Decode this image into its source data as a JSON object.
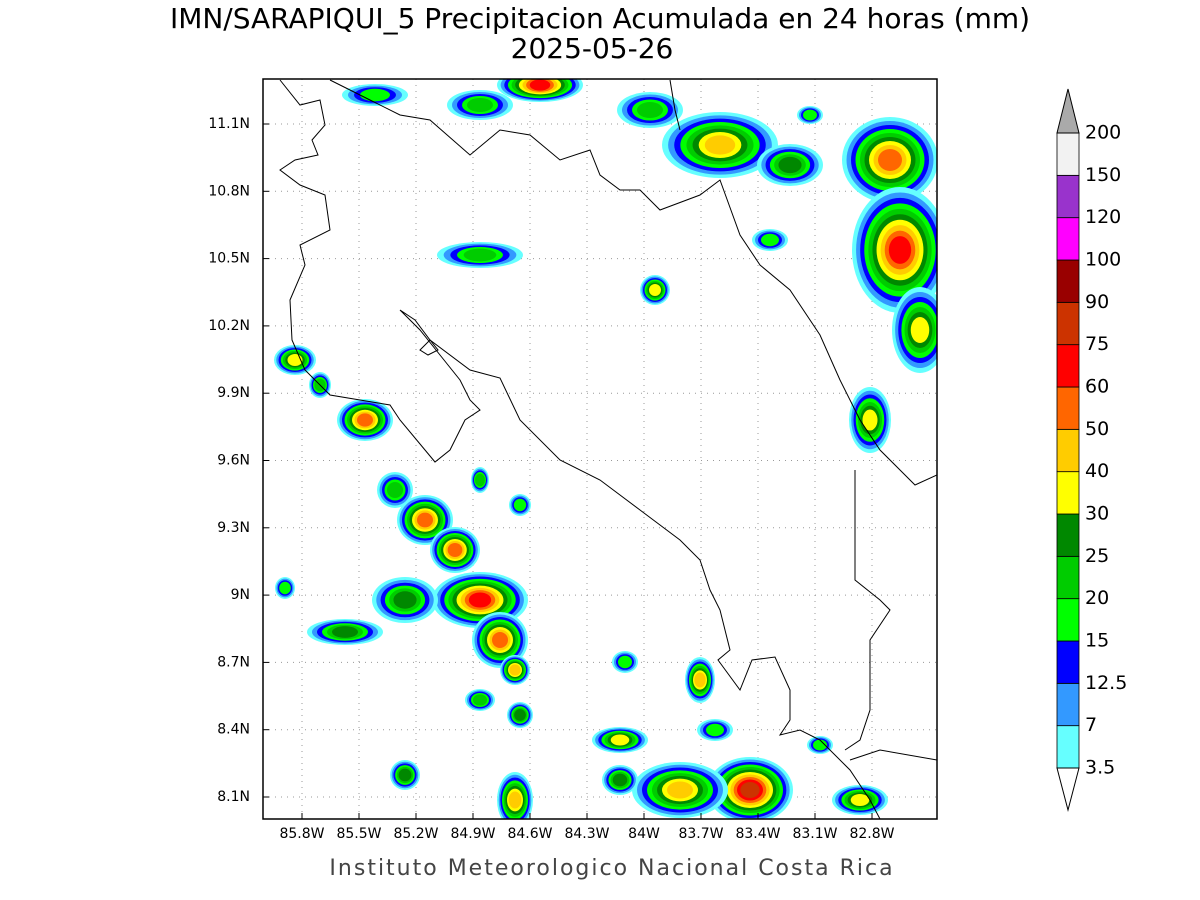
{
  "header": {
    "title": "IMN/SARAPIQUI_5 Precipitacion Acumulada en 24 horas (mm)",
    "date": "2025-05-26"
  },
  "map": {
    "lon_ticks": [
      "85.8W",
      "85.5W",
      "85.2W",
      "84.9W",
      "84.6W",
      "84.3W",
      "84W",
      "83.7W",
      "83.4W",
      "83.1W",
      "82.8W"
    ],
    "lat_ticks": [
      "11.1N",
      "10.8N",
      "10.5N",
      "10.2N",
      "9.9N",
      "9.6N",
      "9.3N",
      "9N",
      "8.7N",
      "8.4N",
      "8.1N"
    ]
  },
  "colorbar": {
    "labels": [
      "3.5",
      "7",
      "12.5",
      "15",
      "20",
      "25",
      "30",
      "40",
      "50",
      "60",
      "75",
      "90",
      "100",
      "120",
      "150",
      "200"
    ],
    "colors": [
      "#66ffff",
      "#3399ff",
      "#0000ff",
      "#00ff00",
      "#00cc00",
      "#008800",
      "#ffff00",
      "#ffcc00",
      "#ff6600",
      "#ff0000",
      "#cc3300",
      "#990000",
      "#ff00ff",
      "#9933cc",
      "#f2f2f2"
    ],
    "under_color": "#ffffff",
    "over_color": "#aaaaaa"
  },
  "footer": "Instituto Meteorologico Nacional Costa Rica"
}
